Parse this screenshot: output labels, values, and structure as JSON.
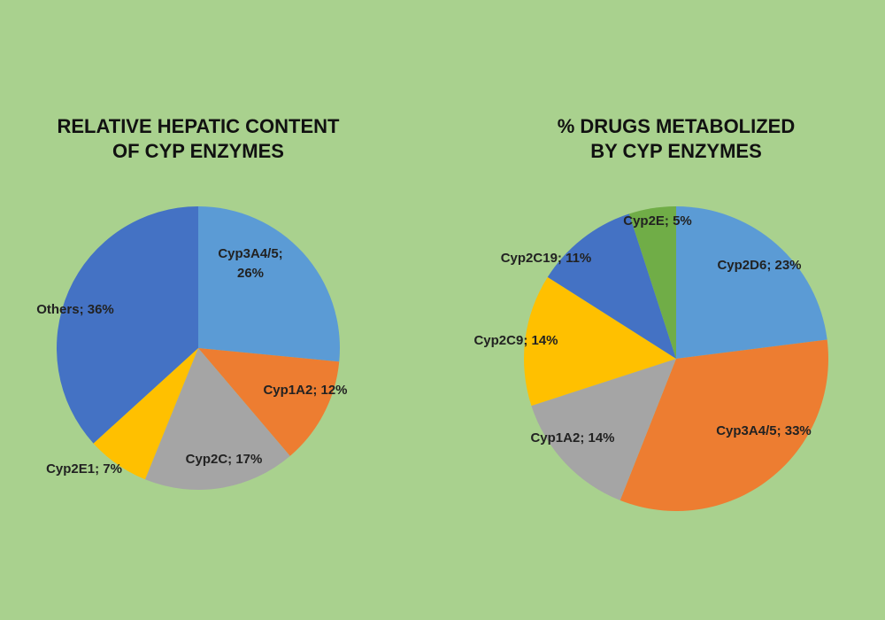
{
  "chart_data": [
    {
      "type": "pie",
      "title": [
        "RELATIVE HEPATIC CONTENT",
        "OF CYP ENZYMES"
      ],
      "values": [
        26,
        12,
        17,
        7,
        36
      ],
      "value_labels": [
        "Cyp3A4/5; 26%",
        "Cyp1A2; 12%",
        "Cyp2C; 17%",
        "Cyp2E1; 7%",
        "Others; 36%"
      ],
      "colors": [
        "#5b9bd5",
        "#ed7d31",
        "#a5a5a5",
        "#ffc000",
        "#4472c4"
      ]
    },
    {
      "type": "pie",
      "title": [
        "% DRUGS METABOLIZED",
        "BY CYP ENZYMES"
      ],
      "values": [
        23,
        33,
        14,
        14,
        11,
        5
      ],
      "value_labels": [
        "Cyp2D6; 23%",
        "Cyp3A4/5; 33%",
        "Cyp1A2; 14%",
        "Cyp2C9; 14%",
        "Cyp2C19; 11%",
        "Cyp2E; 5%"
      ],
      "colors": [
        "#5b9bd5",
        "#ed7d31",
        "#a5a5a5",
        "#ffc000",
        "#4472c4",
        "#70ad47"
      ]
    }
  ]
}
